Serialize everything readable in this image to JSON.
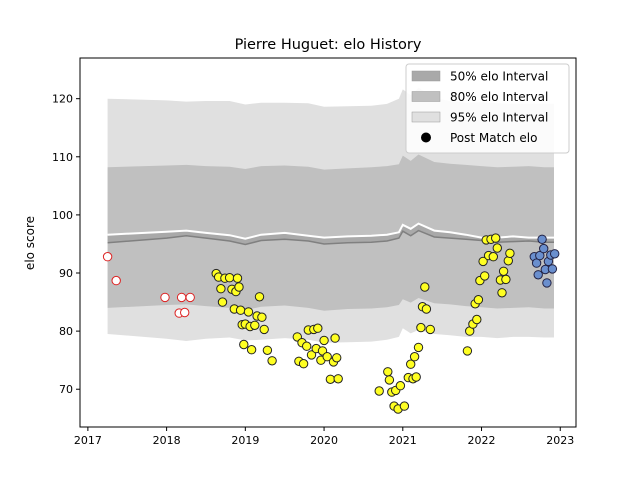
{
  "chart_data": {
    "type": "scatter",
    "title": "Pierre Huguet: elo History",
    "ylabel": "elo score",
    "xlabel": "",
    "xlim": [
      2016.9,
      2023.2
    ],
    "ylim": [
      63.5,
      127.0
    ],
    "x_ticks": [
      {
        "value": 2017,
        "label": "2017"
      },
      {
        "value": 2018,
        "label": "2018"
      },
      {
        "value": 2019,
        "label": "2019"
      },
      {
        "value": 2020,
        "label": "2020"
      },
      {
        "value": 2021,
        "label": "2021"
      },
      {
        "value": 2022,
        "label": "2022"
      },
      {
        "value": 2023,
        "label": "2023"
      }
    ],
    "y_ticks": [
      70,
      80,
      90,
      100,
      110,
      120
    ],
    "grid": false,
    "legend": {
      "placement": "top-right",
      "entries": [
        {
          "label": "50% elo Interval",
          "kind": "patch",
          "color": "#a9a9a9"
        },
        {
          "label": "80% elo Interval",
          "kind": "patch",
          "color": "#c0c0c0"
        },
        {
          "label": "95% elo Interval",
          "kind": "patch",
          "color": "#e0e0e0"
        },
        {
          "label": "Post Match elo",
          "kind": "marker",
          "color": "#000000"
        }
      ]
    },
    "intervals": {
      "x": [
        2017.25,
        2018.0,
        2018.25,
        2018.5,
        2018.8,
        2019.0,
        2019.2,
        2019.5,
        2019.8,
        2020.0,
        2020.3,
        2020.6,
        2020.8,
        2020.95,
        2021.0,
        2021.1,
        2021.2,
        2021.4,
        2021.6,
        2021.8,
        2022.0,
        2022.2,
        2022.4,
        2022.6,
        2022.8,
        2022.92
      ],
      "mean": [
        95.2,
        96.0,
        96.4,
        96.0,
        95.5,
        94.9,
        95.6,
        95.8,
        95.5,
        95.0,
        95.2,
        95.3,
        95.5,
        96.0,
        97.2,
        96.4,
        97.3,
        96.2,
        96.0,
        95.8,
        95.6,
        95.3,
        95.4,
        95.5,
        95.3,
        95.3
      ],
      "upper_white": [
        96.6,
        97.1,
        97.3,
        96.9,
        96.5,
        95.9,
        96.6,
        96.9,
        96.4,
        96.1,
        96.3,
        96.4,
        96.6,
        97.0,
        98.3,
        97.6,
        98.5,
        97.3,
        97.0,
        96.6,
        96.1,
        96.1,
        96.3,
        96.1,
        96.1,
        96.1
      ],
      "band50": {
        "lower": [
          95.2,
          96.0,
          96.4,
          96.0,
          95.5,
          94.9,
          95.6,
          95.8,
          95.5,
          95.0,
          95.2,
          95.3,
          95.5,
          96.0,
          97.2,
          96.4,
          97.3,
          96.2,
          96.0,
          95.8,
          95.6,
          95.3,
          95.4,
          95.5,
          95.3,
          95.3
        ],
        "upper": [
          96.6,
          97.1,
          97.3,
          96.9,
          96.5,
          95.9,
          96.6,
          96.9,
          96.4,
          96.1,
          96.3,
          96.4,
          96.6,
          97.0,
          98.3,
          97.6,
          98.5,
          97.3,
          97.0,
          96.6,
          96.1,
          96.1,
          96.3,
          96.1,
          96.1,
          96.1
        ]
      },
      "band80": {
        "lower": [
          84.0,
          84.5,
          84.6,
          84.3,
          84.0,
          83.6,
          84.2,
          84.4,
          84.0,
          83.5,
          83.8,
          83.9,
          84.1,
          84.5,
          85.5,
          84.9,
          85.7,
          84.8,
          84.6,
          84.3,
          84.1,
          83.9,
          84.0,
          84.1,
          83.9,
          83.9
        ],
        "upper": [
          108.2,
          108.5,
          108.6,
          108.4,
          108.3,
          107.9,
          108.4,
          108.5,
          108.3,
          107.8,
          108.0,
          108.2,
          108.4,
          108.7,
          110.2,
          109.3,
          110.4,
          109.1,
          108.8,
          108.6,
          108.4,
          108.2,
          108.3,
          108.4,
          108.2,
          108.2
        ]
      },
      "band95": {
        "lower": [
          79.5,
          78.7,
          78.3,
          78.7,
          78.9,
          78.4,
          78.5,
          78.8,
          78.5,
          78.0,
          78.1,
          78.2,
          78.5,
          79.0,
          80.5,
          79.6,
          80.2,
          79.5,
          79.3,
          79.0,
          79.0,
          78.8,
          79.0,
          79.0,
          78.9,
          78.9
        ],
        "upper": [
          120.0,
          119.7,
          119.5,
          119.6,
          119.6,
          119.0,
          119.3,
          119.3,
          119.2,
          118.6,
          118.7,
          118.8,
          119.1,
          120.0,
          121.6,
          120.6,
          121.9,
          120.1,
          119.6,
          119.3,
          119.4,
          119.2,
          119.1,
          119.1,
          119.1,
          119.1
        ]
      }
    },
    "series": [
      {
        "marker_fill": "#ffffff",
        "marker_edge": "#dd2222",
        "points": [
          [
            2017.25,
            92.8
          ],
          [
            2017.36,
            88.7
          ],
          [
            2017.98,
            85.8
          ],
          [
            2018.16,
            83.1
          ],
          [
            2018.19,
            85.8
          ],
          [
            2018.23,
            83.2
          ],
          [
            2018.3,
            85.8
          ]
        ]
      },
      {
        "marker_fill": "#ffff22",
        "marker_edge": "#222222",
        "points": [
          [
            2018.63,
            89.9
          ],
          [
            2018.66,
            89.3
          ],
          [
            2018.69,
            87.3
          ],
          [
            2018.71,
            85.0
          ],
          [
            2018.74,
            89.1
          ],
          [
            2018.8,
            89.2
          ],
          [
            2018.83,
            87.2
          ],
          [
            2018.86,
            83.8
          ],
          [
            2018.88,
            86.8
          ],
          [
            2018.9,
            89.1
          ],
          [
            2018.92,
            87.6
          ],
          [
            2018.94,
            83.6
          ],
          [
            2018.96,
            81.1
          ],
          [
            2018.98,
            77.7
          ],
          [
            2019.0,
            81.2
          ],
          [
            2019.04,
            83.3
          ],
          [
            2019.06,
            80.8
          ],
          [
            2019.08,
            76.8
          ],
          [
            2019.12,
            81.0
          ],
          [
            2019.15,
            82.6
          ],
          [
            2019.18,
            85.9
          ],
          [
            2019.21,
            82.4
          ],
          [
            2019.24,
            80.3
          ],
          [
            2019.28,
            76.7
          ],
          [
            2019.34,
            74.9
          ],
          [
            2019.66,
            79.0
          ],
          [
            2019.68,
            74.8
          ],
          [
            2019.72,
            78.0
          ],
          [
            2019.74,
            74.4
          ],
          [
            2019.78,
            77.4
          ],
          [
            2019.8,
            80.2
          ],
          [
            2019.84,
            75.9
          ],
          [
            2019.87,
            80.3
          ],
          [
            2019.9,
            77.0
          ],
          [
            2019.92,
            80.5
          ],
          [
            2019.96,
            75.0
          ],
          [
            2019.98,
            76.6
          ],
          [
            2020.0,
            78.4
          ],
          [
            2020.04,
            75.6
          ],
          [
            2020.08,
            71.7
          ],
          [
            2020.12,
            74.7
          ],
          [
            2020.14,
            78.8
          ],
          [
            2020.16,
            75.4
          ],
          [
            2020.18,
            71.8
          ],
          [
            2020.7,
            69.7
          ],
          [
            2020.81,
            73.0
          ],
          [
            2020.83,
            71.6
          ],
          [
            2020.86,
            69.5
          ],
          [
            2020.89,
            67.1
          ],
          [
            2020.91,
            69.8
          ],
          [
            2020.94,
            66.6
          ],
          [
            2020.97,
            70.6
          ],
          [
            2021.02,
            67.1
          ],
          [
            2021.07,
            72.0
          ],
          [
            2021.1,
            74.3
          ],
          [
            2021.13,
            71.8
          ],
          [
            2021.15,
            75.6
          ],
          [
            2021.17,
            72.1
          ],
          [
            2021.2,
            77.2
          ],
          [
            2021.23,
            80.6
          ],
          [
            2021.25,
            84.2
          ],
          [
            2021.28,
            87.6
          ],
          [
            2021.3,
            83.8
          ],
          [
            2021.35,
            80.3
          ],
          [
            2021.82,
            76.6
          ],
          [
            2021.85,
            80.0
          ],
          [
            2021.89,
            81.2
          ],
          [
            2021.92,
            84.7
          ],
          [
            2021.94,
            82.0
          ],
          [
            2021.96,
            85.4
          ],
          [
            2021.98,
            88.7
          ],
          [
            2022.02,
            92.0
          ],
          [
            2022.04,
            89.5
          ],
          [
            2022.06,
            95.7
          ],
          [
            2022.09,
            93.0
          ],
          [
            2022.12,
            95.8
          ],
          [
            2022.15,
            92.8
          ],
          [
            2022.18,
            96.0
          ],
          [
            2022.2,
            94.3
          ],
          [
            2022.24,
            88.8
          ],
          [
            2022.26,
            86.6
          ],
          [
            2022.28,
            90.3
          ],
          [
            2022.31,
            88.9
          ],
          [
            2022.34,
            92.1
          ],
          [
            2022.36,
            93.4
          ]
        ]
      },
      {
        "marker_fill": "#6a8fce",
        "marker_edge": "#222244",
        "points": [
          [
            2022.67,
            92.8
          ],
          [
            2022.7,
            91.7
          ],
          [
            2022.72,
            89.7
          ],
          [
            2022.74,
            93.0
          ],
          [
            2022.77,
            95.8
          ],
          [
            2022.79,
            94.2
          ],
          [
            2022.81,
            90.6
          ],
          [
            2022.83,
            88.3
          ],
          [
            2022.85,
            92.0
          ],
          [
            2022.88,
            93.1
          ],
          [
            2022.9,
            90.7
          ],
          [
            2022.93,
            93.3
          ]
        ]
      }
    ]
  }
}
